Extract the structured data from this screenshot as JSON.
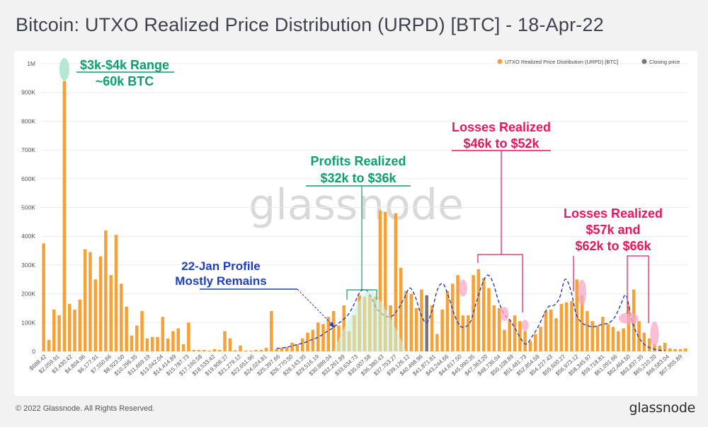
{
  "page": {
    "title": "Bitcoin: UTXO Realized Price Distribution (URPD) [BTC] - 18-Apr-22",
    "copyright": "© 2022 Glassnode. All Rights Reserved.",
    "brand": "glassnode",
    "watermark": "glassnode"
  },
  "chart_data": {
    "type": "bar",
    "title": "Bitcoin: UTXO Realized Price Distribution (URPD) [BTC] - 18-Apr-22",
    "xlabel": "",
    "ylabel": "",
    "ylim": [
      0,
      1000000
    ],
    "yticks": [
      0,
      100000,
      200000,
      300000,
      400000,
      500000,
      600000,
      700000,
      800000,
      900000,
      1000000
    ],
    "ytick_labels": [
      "0",
      "100K",
      "200K",
      "300K",
      "400K",
      "500K",
      "600K",
      "700K",
      "800K",
      "900K",
      "1M"
    ],
    "grid": true,
    "legend_position": "top-right",
    "legend": [
      {
        "label": "UTXO Realized Price Distribution (URPD) [BTC]",
        "color": "#f7a035"
      },
      {
        "label": "Closing price",
        "color": "#777777"
      }
    ],
    "xtick_labels": [
      "$688.42",
      "$2,059.91",
      "$3,430.42",
      "$4,804.96",
      "$6,177.91",
      "$7,550.66",
      "$8,923.50",
      "$10,296.35",
      "$11,669.19",
      "$13,042.04",
      "$14,414.89",
      "$15,787.73",
      "$17,160.58",
      "$18,533.42",
      "$19,906.27",
      "$21,279.12",
      "$22,651.96",
      "$24,024.81",
      "$25,397.66",
      "$26,770.50",
      "$28,143.35",
      "$29,516.19",
      "$30,889.04",
      "$32,261.89",
      "$33,634.73",
      "$35,007.58",
      "$36,380.43",
      "$37,753.27",
      "$39,126.12",
      "$40,498.96",
      "$41,871.81",
      "$43,244.66",
      "$44,617.50",
      "$45,990.35",
      "$47,363.20",
      "$48,736.04",
      "$50,108.89",
      "$51,481.73",
      "$52,854.58",
      "$54,227.43",
      "$55,600.27",
      "$56,973.12",
      "$58,345.97",
      "$59,718.81",
      "$61,091.66",
      "$62,464.50",
      "$63,837.35",
      "$65,210.20",
      "$66,583.04",
      "$67,955.89"
    ],
    "series": [
      {
        "name": "UTXO Realized Price Distribution (URPD) [BTC]",
        "color": "#f7a035",
        "values": [
          375000,
          40000,
          145000,
          125000,
          940000,
          165000,
          145000,
          180000,
          355000,
          345000,
          250000,
          330000,
          420000,
          265000,
          405000,
          235000,
          155000,
          55000,
          90000,
          140000,
          45000,
          50000,
          50000,
          120000,
          45000,
          70000,
          80000,
          25000,
          100000,
          5000,
          5000,
          5000,
          3000,
          8000,
          5000,
          70000,
          45000,
          4000,
          20000,
          3000,
          3000,
          5000,
          5000,
          12000,
          140000,
          8000,
          12000,
          15000,
          30000,
          25000,
          45000,
          65000,
          75000,
          100000,
          95000,
          120000,
          140000,
          90000,
          160000,
          70000,
          125000,
          195000,
          190000,
          195000,
          190000,
          490000,
          485000,
          160000,
          480000,
          290000,
          210000,
          200000,
          150000,
          215000,
          195000,
          160000,
          60000,
          145000,
          210000,
          235000,
          265000,
          125000,
          125000,
          265000,
          285000,
          255000,
          220000,
          160000,
          150000,
          75000,
          110000,
          125000,
          105000,
          70000,
          35000,
          60000,
          85000,
          140000,
          145000,
          115000,
          165000,
          170000,
          175000,
          250000,
          195000,
          140000,
          105000,
          90000,
          120000,
          95000,
          85000,
          70000,
          80000,
          160000,
          215000,
          105000,
          65000,
          45000,
          25000,
          20000,
          30000,
          10000,
          8000,
          8000,
          10000
        ],
        "closing_price_index": 74
      },
      {
        "name": "22-Jan Profile",
        "style": "dashed",
        "color": "#1f3fbf",
        "values": [
          10000,
          12000,
          15000,
          20000,
          25000,
          30000,
          38000,
          45000,
          55000,
          68000,
          80000,
          95000,
          110000,
          130000,
          165000,
          205000,
          215000,
          190000,
          150000,
          130000,
          120000,
          125000,
          150000,
          185000,
          220000,
          190000,
          130000,
          100000,
          140000,
          215000,
          235000,
          190000,
          130000,
          90000,
          85000,
          105000,
          170000,
          230000,
          265000,
          240000,
          175000,
          130000,
          110000,
          80000,
          45000,
          25000,
          50000,
          80000,
          120000,
          155000,
          160000,
          185000,
          250000,
          215000,
          130000,
          100000,
          90000,
          85000,
          90000,
          95000,
          100000,
          120000,
          160000,
          195000,
          110000,
          60000,
          30000,
          15000,
          8000,
          4000,
          3000
        ]
      }
    ],
    "annotations": [
      {
        "text": "$3k-$4k Range",
        "color": "#0e9f6e"
      },
      {
        "text": "~60k BTC",
        "color": "#0e9f6e"
      },
      {
        "text": "Profits Realized",
        "color": "#0e9f6e"
      },
      {
        "text": "$32k to $36k",
        "color": "#0e9f6e"
      },
      {
        "text": "22-Jan Profile",
        "color": "#1f3fbf"
      },
      {
        "text": "Mostly Remains",
        "color": "#1f3fbf"
      },
      {
        "text": "Losses Realized",
        "color": "#e8175d"
      },
      {
        "text": "$46k to $52k",
        "color": "#e8175d"
      },
      {
        "text": "Losses Realized",
        "color": "#e8175d"
      },
      {
        "text": "$57k and",
        "color": "#e8175d"
      },
      {
        "text": "$62k to $66k",
        "color": "#e8175d"
      }
    ]
  }
}
